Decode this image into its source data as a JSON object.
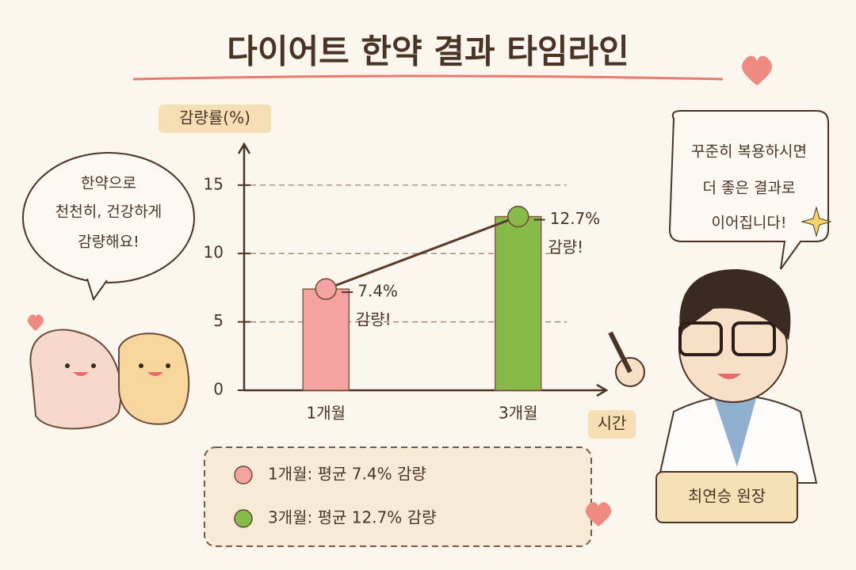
{
  "chart_data": {
    "type": "bar",
    "title": "다이어트 한약 결과 타임라인",
    "y_label": "감량률(%)",
    "x_label": "시간",
    "categories": [
      "1개월",
      "3개월"
    ],
    "values": [
      7.4,
      12.7
    ],
    "value_labels": [
      "7.4%",
      "12.7%"
    ],
    "annotations": [
      "감량!",
      "감량!"
    ],
    "colors": [
      "#f4a3a0",
      "#86bb4a"
    ],
    "ylim": [
      0,
      18
    ],
    "yticks": [
      0,
      5,
      10,
      15
    ],
    "grid": true,
    "legend": [
      "1개월: 평균 7.4% 감량",
      "3개월: 평균 12.7% 감량"
    ]
  },
  "speech_left": {
    "lines": [
      "한약으로",
      "천천히, 건강하게",
      "감량해요!"
    ]
  },
  "speech_right": {
    "lines": [
      "꾸준히 복용하시면",
      "더 좋은 결과로",
      "이어집니다!"
    ]
  },
  "name_tag": "최연승 원장"
}
